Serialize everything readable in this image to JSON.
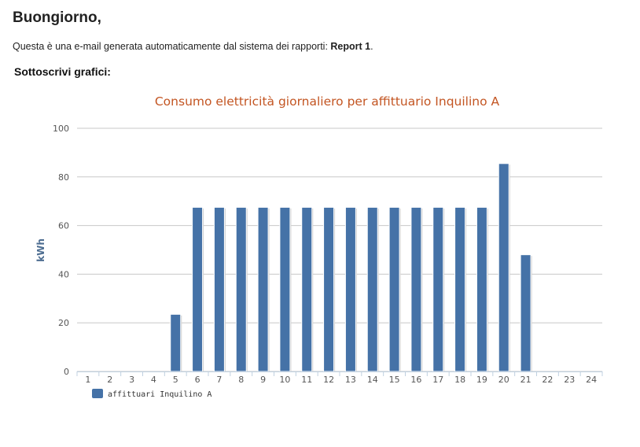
{
  "email": {
    "greeting": "Buongiorno,",
    "intro_text": "Questa è una e-mail generata automaticamente dal sistema dei rapporti: ",
    "report_name": "Report 1",
    "intro_end": ".",
    "subheading": "Sottoscrivi grafici:"
  },
  "chart_data": {
    "type": "bar",
    "title": "Consumo elettricità giornaliero per affittuario Inquilino A",
    "xlabel": "",
    "ylabel": "kWh",
    "ylim": [
      0,
      100
    ],
    "yticks": [
      0,
      20,
      40,
      60,
      80,
      100
    ],
    "categories": [
      "1",
      "2",
      "3",
      "4",
      "5",
      "6",
      "7",
      "8",
      "9",
      "10",
      "11",
      "12",
      "13",
      "14",
      "15",
      "16",
      "17",
      "18",
      "19",
      "20",
      "21",
      "22",
      "23",
      "24"
    ],
    "series": [
      {
        "name": "affittuari Inquilino A",
        "color": "#4572a7",
        "values": [
          0,
          0,
          0,
          0,
          23.5,
          67.5,
          67.5,
          67.5,
          67.5,
          67.5,
          67.5,
          67.5,
          67.5,
          67.5,
          67.5,
          67.5,
          67.5,
          67.5,
          67.5,
          85.5,
          48,
          0,
          0,
          0
        ]
      }
    ],
    "grid": true,
    "legend_position": "bottom-left"
  }
}
